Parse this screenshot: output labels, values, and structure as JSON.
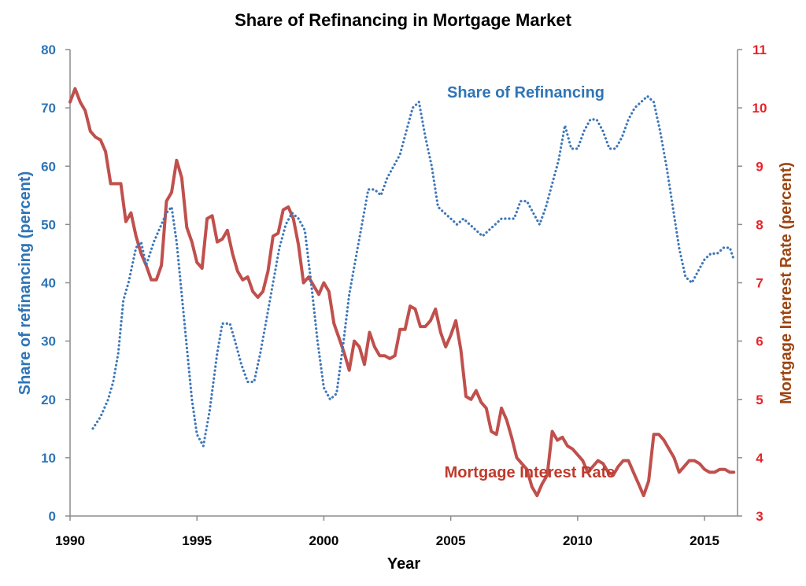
{
  "chart_data": {
    "type": "line",
    "title": "Share of Refinancing in Mortgage Market",
    "xlabel": "Year",
    "ylabel_left": "Share of refinancing (percent)",
    "ylabel_right": "Mortgage Interest Rate (percent)",
    "xlim": [
      1990,
      2016.3
    ],
    "ylim_left": [
      0,
      80
    ],
    "ylim_right": [
      3,
      11
    ],
    "x_ticks": [
      "1990",
      "1995",
      "2000",
      "2005",
      "2010",
      "2015"
    ],
    "y_ticks_left": [
      "0",
      "10",
      "20",
      "30",
      "40",
      "50",
      "60",
      "70",
      "80"
    ],
    "y_ticks_right": [
      "3",
      "4",
      "5",
      "6",
      "7",
      "8",
      "9",
      "10",
      "11"
    ],
    "annotations": {
      "refi": "Share of Refinancing",
      "rate": "Mortgage Interest Rate"
    },
    "grid": false,
    "colors": {
      "refi": "#3f77b8",
      "rate": "#c0504d",
      "left_axis_text": "#2e75b6",
      "right_axis_text": "#e8232a",
      "right_label": "#9c4511",
      "axis_line": "#8c8c8c"
    },
    "series": [
      {
        "name": "Share of Refinancing",
        "axis": "left",
        "x": [
          1990.9,
          1991.2,
          1991.5,
          1991.7,
          1991.9,
          1992.1,
          1992.3,
          1992.6,
          1992.8,
          1993.0,
          1993.3,
          1993.5,
          1993.8,
          1994.0,
          1994.2,
          1994.4,
          1994.6,
          1994.8,
          1995.0,
          1995.25,
          1995.5,
          1995.8,
          1996.0,
          1996.3,
          1996.5,
          1996.75,
          1997.0,
          1997.25,
          1997.5,
          1997.75,
          1998.0,
          1998.25,
          1998.5,
          1998.75,
          1999.0,
          1999.25,
          1999.5,
          1999.75,
          2000.0,
          2000.25,
          2000.5,
          2000.75,
          2001.0,
          2001.25,
          2001.5,
          2001.75,
          2002.0,
          2002.25,
          2002.5,
          2002.75,
          2003.0,
          2003.25,
          2003.5,
          2003.75,
          2004.0,
          2004.25,
          2004.5,
          2004.75,
          2005.0,
          2005.25,
          2005.5,
          2005.75,
          2006.0,
          2006.25,
          2006.5,
          2006.75,
          2007.0,
          2007.25,
          2007.5,
          2007.75,
          2008.0,
          2008.25,
          2008.5,
          2008.75,
          2009.0,
          2009.25,
          2009.5,
          2009.75,
          2010.0,
          2010.25,
          2010.5,
          2010.75,
          2011.0,
          2011.25,
          2011.5,
          2011.75,
          2012.0,
          2012.25,
          2012.5,
          2012.75,
          2013.0,
          2013.25,
          2013.5,
          2013.75,
          2014.0,
          2014.25,
          2014.5,
          2014.75,
          2015.0,
          2015.25,
          2015.5,
          2015.75,
          2016.0,
          2016.15
        ],
        "y": [
          15,
          17,
          20,
          23,
          28,
          37,
          40,
          46,
          47,
          43,
          47,
          49,
          52,
          53,
          47,
          38,
          29,
          20,
          14,
          12,
          18,
          28,
          33,
          33,
          30,
          26,
          23,
          23,
          28,
          34,
          40,
          46,
          50,
          52,
          51,
          49,
          40,
          30,
          22,
          20,
          21,
          29,
          38,
          44,
          50,
          56,
          56,
          55,
          58,
          60,
          62,
          66,
          70,
          71,
          65,
          60,
          53,
          52,
          51,
          50,
          51,
          50,
          49,
          48,
          49,
          50,
          51,
          51,
          51,
          54,
          54,
          52,
          50,
          53,
          57,
          61,
          67,
          63,
          63,
          66,
          68,
          68,
          66,
          63,
          63,
          65,
          68,
          70,
          71,
          72,
          71,
          66,
          60,
          53,
          46,
          41,
          40,
          42,
          44,
          45,
          45,
          46,
          46,
          44
        ]
      },
      {
        "name": "Mortgage Interest Rate",
        "axis": "right",
        "x": [
          1990.0,
          1990.2,
          1990.4,
          1990.6,
          1990.8,
          1991.0,
          1991.2,
          1991.4,
          1991.6,
          1991.8,
          1992.0,
          1992.2,
          1992.4,
          1992.6,
          1992.8,
          1993.0,
          1993.2,
          1993.4,
          1993.6,
          1993.8,
          1994.0,
          1994.2,
          1994.4,
          1994.6,
          1994.8,
          1995.0,
          1995.2,
          1995.4,
          1995.6,
          1995.8,
          1996.0,
          1996.2,
          1996.4,
          1996.6,
          1996.8,
          1997.0,
          1997.2,
          1997.4,
          1997.6,
          1997.8,
          1998.0,
          1998.2,
          1998.4,
          1998.6,
          1998.8,
          1999.0,
          1999.2,
          1999.4,
          1999.6,
          1999.8,
          2000.0,
          2000.2,
          2000.4,
          2000.6,
          2000.8,
          2001.0,
          2001.2,
          2001.4,
          2001.6,
          2001.8,
          2002.0,
          2002.2,
          2002.4,
          2002.6,
          2002.8,
          2003.0,
          2003.2,
          2003.4,
          2003.6,
          2003.8,
          2004.0,
          2004.2,
          2004.4,
          2004.6,
          2004.8,
          2005.0,
          2005.2,
          2005.4,
          2005.6,
          2005.8,
          2006.0,
          2006.2,
          2006.4,
          2006.6,
          2006.8,
          2007.0,
          2007.2,
          2007.4,
          2007.6,
          2007.8,
          2008.0,
          2008.2,
          2008.4,
          2008.6,
          2008.8,
          2009.0,
          2009.2,
          2009.4,
          2009.6,
          2009.8,
          2010.0,
          2010.2,
          2010.4,
          2010.6,
          2010.8,
          2011.0,
          2011.2,
          2011.4,
          2011.6,
          2011.8,
          2012.0,
          2012.2,
          2012.4,
          2012.6,
          2012.8,
          2013.0,
          2013.2,
          2013.4,
          2013.6,
          2013.8,
          2014.0,
          2014.2,
          2014.4,
          2014.6,
          2014.8,
          2015.0,
          2015.2,
          2015.4,
          2015.6,
          2015.8,
          2016.0,
          2016.15
        ],
        "y": [
          10.1,
          10.33,
          10.1,
          9.95,
          9.6,
          9.5,
          9.45,
          9.25,
          8.7,
          8.7,
          8.7,
          8.05,
          8.2,
          7.8,
          7.5,
          7.3,
          7.05,
          7.05,
          7.3,
          8.4,
          8.55,
          9.1,
          8.8,
          7.95,
          7.7,
          7.35,
          7.25,
          8.1,
          8.15,
          7.7,
          7.75,
          7.9,
          7.5,
          7.2,
          7.05,
          7.1,
          6.85,
          6.75,
          6.85,
          7.2,
          7.8,
          7.85,
          8.25,
          8.3,
          8.1,
          7.65,
          7.0,
          7.1,
          6.95,
          6.8,
          7.0,
          6.85,
          6.3,
          6.05,
          5.8,
          5.5,
          6.0,
          5.9,
          5.6,
          6.15,
          5.9,
          5.75,
          5.75,
          5.7,
          5.75,
          6.2,
          6.2,
          6.6,
          6.55,
          6.25,
          6.25,
          6.35,
          6.55,
          6.15,
          5.9,
          6.1,
          6.35,
          5.85,
          5.05,
          5.0,
          5.15,
          4.95,
          4.85,
          4.45,
          4.4,
          4.85,
          4.65,
          4.35,
          4.0,
          3.9,
          3.8,
          3.5,
          3.35,
          3.55,
          3.7,
          4.45,
          4.3,
          4.35,
          4.2,
          4.15,
          4.05,
          3.95,
          3.75,
          3.85,
          3.95,
          3.9,
          3.75,
          3.7,
          3.85,
          3.95,
          3.95,
          3.75,
          3.55,
          3.35,
          3.6,
          4.4,
          4.4,
          4.3,
          4.15,
          4.0,
          3.75,
          3.85,
          3.95,
          3.95,
          3.9,
          3.8,
          3.75,
          3.75,
          3.8,
          3.8,
          3.75,
          3.75
        ]
      }
    ]
  }
}
